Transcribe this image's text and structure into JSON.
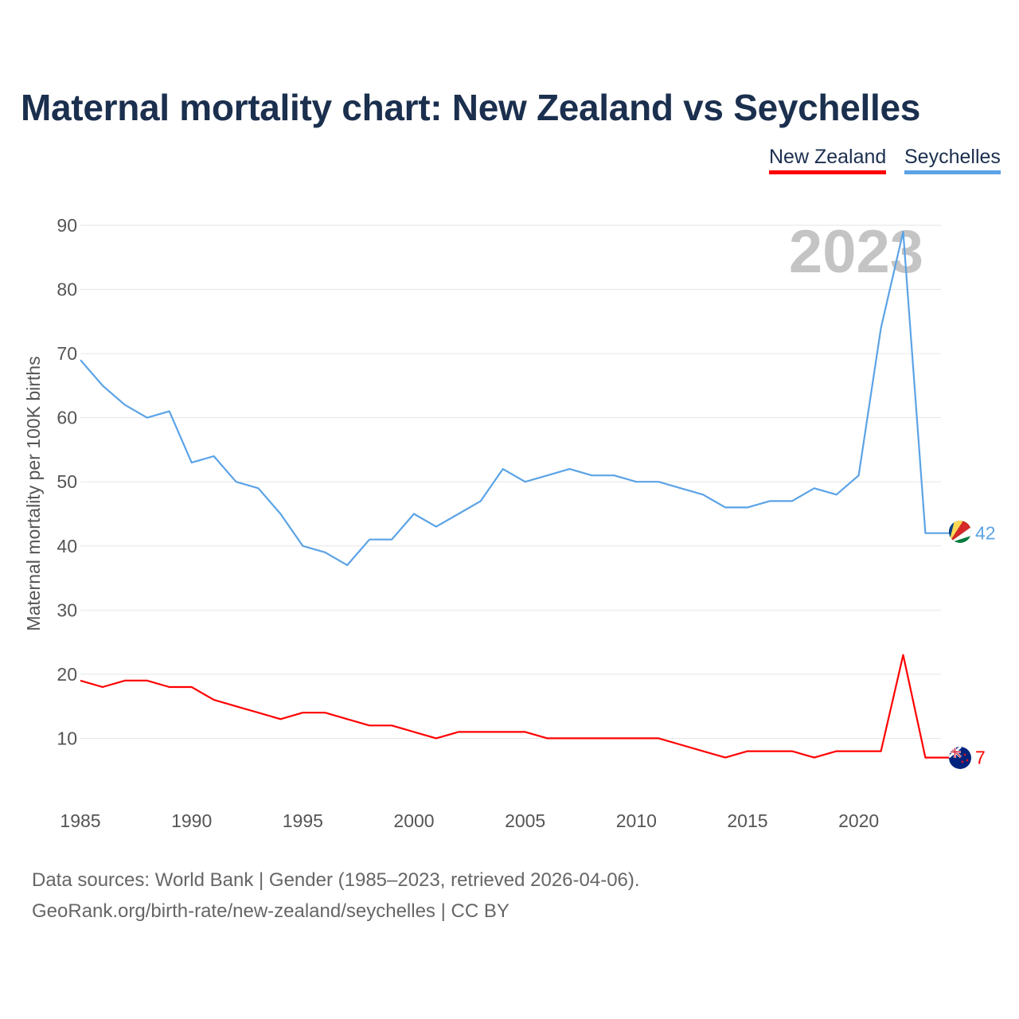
{
  "chart_data": {
    "type": "line",
    "title": "Maternal mortality chart: New Zealand vs Seychelles",
    "ylabel": "Maternal mortality per 100K births",
    "xlabel": "",
    "ylim": [
      0,
      90
    ],
    "xlim": [
      1985,
      2023
    ],
    "yticks": [
      10,
      20,
      30,
      40,
      50,
      60,
      70,
      80,
      90
    ],
    "xticks": [
      1985,
      1990,
      1995,
      2000,
      2005,
      2010,
      2015,
      2020
    ],
    "grid": true,
    "legend_position": "top-right",
    "year_label": "2023",
    "x": [
      1985,
      1986,
      1987,
      1988,
      1989,
      1990,
      1991,
      1992,
      1993,
      1994,
      1995,
      1996,
      1997,
      1998,
      1999,
      2000,
      2001,
      2002,
      2003,
      2004,
      2005,
      2006,
      2007,
      2008,
      2009,
      2010,
      2011,
      2012,
      2013,
      2014,
      2015,
      2016,
      2017,
      2018,
      2019,
      2020,
      2021,
      2022,
      2023
    ],
    "series": [
      {
        "name": "New Zealand",
        "color": "#ff0000",
        "end_label": "7",
        "values": [
          19,
          18,
          19,
          19,
          18,
          18,
          16,
          15,
          14,
          13,
          14,
          14,
          13,
          12,
          12,
          11,
          10,
          11,
          11,
          11,
          11,
          10,
          10,
          10,
          10,
          10,
          10,
          9,
          8,
          7,
          8,
          8,
          8,
          7,
          8,
          8,
          8,
          23,
          7
        ]
      },
      {
        "name": "Seychelles",
        "color": "#5ba3e6",
        "end_label": "42",
        "values": [
          69,
          65,
          62,
          60,
          61,
          53,
          54,
          50,
          49,
          45,
          40,
          39,
          37,
          41,
          41,
          45,
          43,
          45,
          47,
          52,
          50,
          51,
          52,
          51,
          51,
          50,
          50,
          49,
          48,
          46,
          46,
          47,
          47,
          49,
          48,
          51,
          74,
          89,
          42
        ]
      }
    ]
  },
  "footer": {
    "line1": "Data sources: World Bank | Gender (1985–2023, retrieved 2026-04-06).",
    "line2": "GeoRank.org/birth-rate/new-zealand/seychelles | CC BY"
  }
}
